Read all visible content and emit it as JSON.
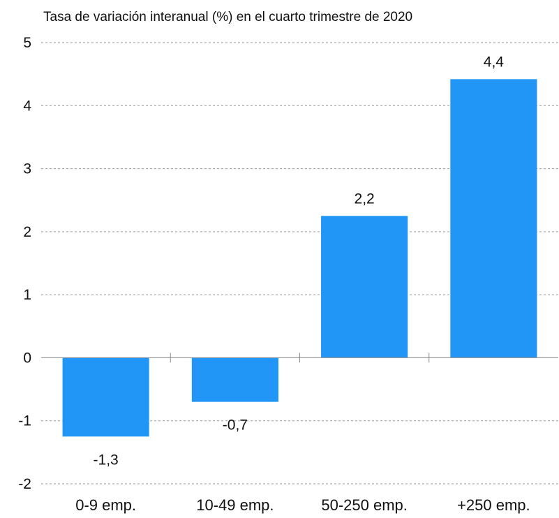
{
  "chart_data": {
    "type": "bar",
    "title": "",
    "subtitle": "Tasa de variación interanual (%) en el cuarto trimestre de 2020",
    "xlabel": "",
    "ylabel": "",
    "categories": [
      "0-9 emp.",
      "10-49 emp.",
      "50-250 emp.",
      "+250 emp."
    ],
    "values": [
      -1.25,
      -0.7,
      2.25,
      4.42
    ],
    "data_labels": [
      "-1,3",
      "-0,7",
      "2,2",
      "4,4"
    ],
    "ylim": [
      -2,
      5
    ],
    "yticks": [
      -2,
      -1,
      0,
      1,
      2,
      3,
      4,
      5
    ],
    "ytick_labels": [
      "-2",
      "-1",
      "0",
      "1",
      "2",
      "3",
      "4",
      "5"
    ],
    "grid": true,
    "legend": "none",
    "bar_color": "#2196F7",
    "grid_color": "#9a9a9a",
    "axis_color": "#8a8a8a"
  }
}
